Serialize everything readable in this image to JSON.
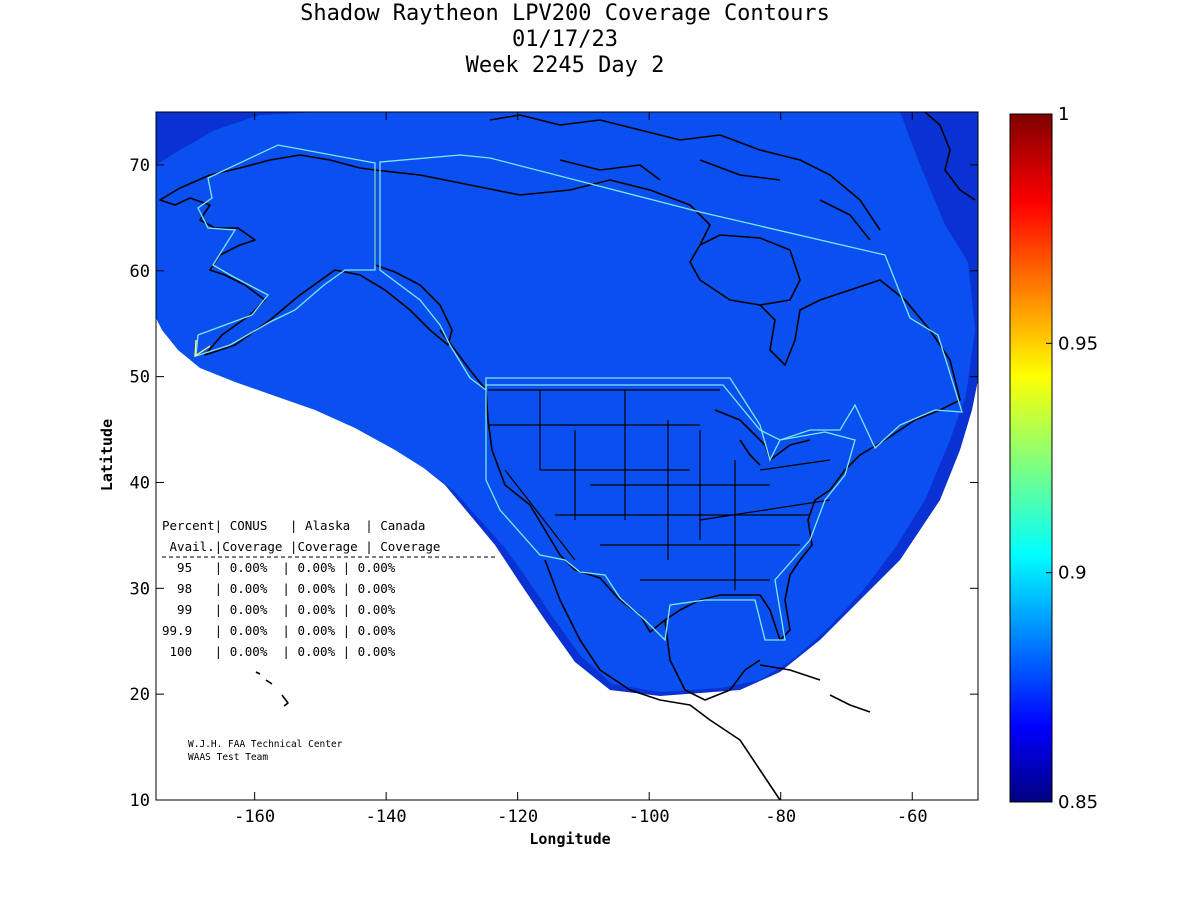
{
  "title": {
    "line1": "Shadow Raytheon LPV200 Coverage Contours",
    "line2": "01/17/23",
    "line3": "Week 2245 Day 2"
  },
  "axes": {
    "xlabel": "Longitude",
    "ylabel": "Latitude",
    "x_ticks": [
      "-160",
      "-140",
      "-120",
      "-100",
      "-80",
      "-60"
    ],
    "y_ticks": [
      "10",
      "20",
      "30",
      "40",
      "50",
      "60",
      "70"
    ],
    "x_range": [
      -175,
      -50
    ],
    "y_range": [
      10,
      75
    ]
  },
  "colorbar": {
    "labels": [
      "1",
      "0.95",
      "0.9",
      "0.85"
    ],
    "range": [
      0.85,
      1.0
    ]
  },
  "stats_table": {
    "header1": "Percent| CONUS   | Alaska  | Canada",
    "header2": " Avail.|Coverage |Coverage | Coverage",
    "rows": [
      "  95   | 0.00%  | 0.00% | 0.00%",
      "  98   | 0.00%  | 0.00% | 0.00%",
      "  99   | 0.00%  | 0.00% | 0.00%",
      "99.9   | 0.00%  | 0.00% | 0.00%",
      " 100   | 0.00%  | 0.00% | 0.00%"
    ]
  },
  "credit": {
    "line1": "W.J.H. FAA Technical Center",
    "line2": "WAAS Test Team"
  },
  "colors": {
    "coverage": "#0a50f0",
    "coverage_edge": "#0a32d2",
    "service_area": "#7de8f0"
  }
}
